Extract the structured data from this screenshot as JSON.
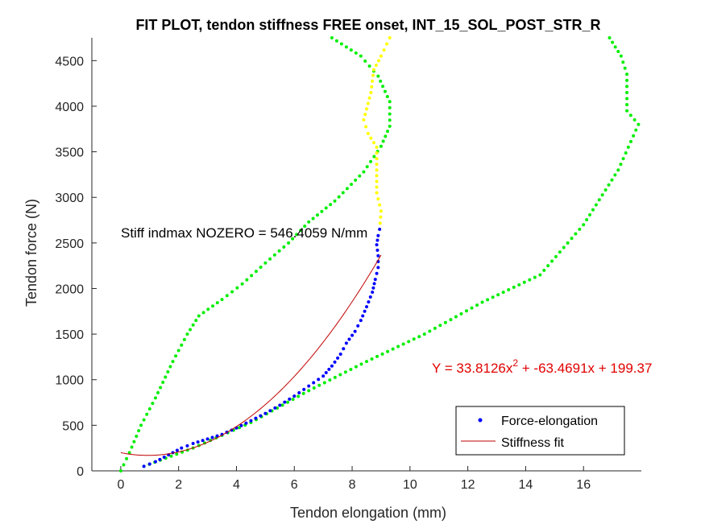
{
  "chart_data": {
    "type": "scatter",
    "title": "FIT PLOT, tendon stiffness FREE onset, INT_15_SOL_POST_STR_R",
    "xlabel": "Tendon elongation (mm)",
    "ylabel": "Tendon force (N)",
    "xlim": [
      -1,
      18
    ],
    "ylim": [
      0,
      4750
    ],
    "xticks": [
      0,
      2,
      4,
      6,
      8,
      10,
      12,
      14,
      16
    ],
    "yticks": [
      0,
      500,
      1000,
      1500,
      2000,
      2500,
      3000,
      3500,
      4000,
      4500
    ],
    "grid": false,
    "legend_position": "bottom-right",
    "annotations": {
      "stiffness": "Stiff indmax NOZERO = 546.4059 N/mm",
      "equation_main": "Y = 33.8126x",
      "equation_sup": "2",
      "equation_rest": " + -63.4691x + 199.37"
    },
    "series": [
      {
        "name": "Force-elongation",
        "kind": "dots",
        "color": "#0000ff",
        "points": [
          [
            0.8,
            50
          ],
          [
            1.2,
            100
          ],
          [
            1.5,
            150
          ],
          [
            1.8,
            200
          ],
          [
            2.1,
            250
          ],
          [
            2.5,
            300
          ],
          [
            3.0,
            350
          ],
          [
            3.5,
            400
          ],
          [
            4.0,
            470
          ],
          [
            4.5,
            550
          ],
          [
            5.0,
            630
          ],
          [
            5.5,
            720
          ],
          [
            6.0,
            820
          ],
          [
            6.5,
            930
          ],
          [
            7.0,
            1040
          ],
          [
            7.3,
            1150
          ],
          [
            7.6,
            1280
          ],
          [
            7.8,
            1400
          ],
          [
            8.1,
            1530
          ],
          [
            8.3,
            1650
          ],
          [
            8.5,
            1800
          ],
          [
            8.7,
            1960
          ],
          [
            8.8,
            2100
          ],
          [
            8.9,
            2230
          ],
          [
            8.9,
            2360
          ],
          [
            8.85,
            2480
          ],
          [
            8.9,
            2580
          ],
          [
            8.95,
            2650
          ]
        ]
      },
      {
        "name": "Stiffness fit",
        "kind": "line",
        "color": "#c00000",
        "coefficients": [
          33.8126,
          -63.4691,
          199.37
        ],
        "xrange": [
          0,
          9
        ]
      },
      {
        "kind": "dots",
        "color": "#00ee00",
        "points": [
          [
            0,
            0
          ],
          [
            0.3,
            200
          ],
          [
            0.7,
            500
          ],
          [
            1.2,
            800
          ],
          [
            1.8,
            1200
          ],
          [
            2.3,
            1500
          ],
          [
            2.7,
            1700
          ],
          [
            3.5,
            1880
          ],
          [
            4.2,
            2050
          ],
          [
            5.0,
            2280
          ],
          [
            5.8,
            2500
          ],
          [
            6.5,
            2730
          ],
          [
            7.4,
            2960
          ],
          [
            8.4,
            3280
          ],
          [
            9.0,
            3560
          ],
          [
            9.3,
            3780
          ],
          [
            9.3,
            4050
          ],
          [
            8.9,
            4330
          ],
          [
            8.3,
            4550
          ],
          [
            7.3,
            4750
          ]
        ]
      },
      {
        "kind": "dots",
        "color": "#00ee00",
        "points": [
          [
            0.8,
            50
          ],
          [
            2.5,
            250
          ],
          [
            4.5,
            530
          ],
          [
            6.5,
            880
          ],
          [
            8.5,
            1200
          ],
          [
            10.5,
            1500
          ],
          [
            12.5,
            1850
          ],
          [
            14.5,
            2150
          ],
          [
            16.0,
            2700
          ],
          [
            17.2,
            3300
          ],
          [
            17.9,
            3800
          ],
          [
            17.5,
            3950
          ],
          [
            17.5,
            4350
          ],
          [
            17.3,
            4550
          ],
          [
            16.9,
            4750
          ]
        ]
      },
      {
        "kind": "dots",
        "color": "#ffff00",
        "points": [
          [
            8.95,
            2650
          ],
          [
            9.0,
            2850
          ],
          [
            8.85,
            3050
          ],
          [
            8.85,
            3300
          ],
          [
            8.85,
            3550
          ],
          [
            8.55,
            3700
          ],
          [
            8.4,
            3850
          ],
          [
            8.65,
            4150
          ],
          [
            8.75,
            4400
          ],
          [
            9.0,
            4550
          ],
          [
            9.3,
            4750
          ]
        ]
      }
    ]
  }
}
